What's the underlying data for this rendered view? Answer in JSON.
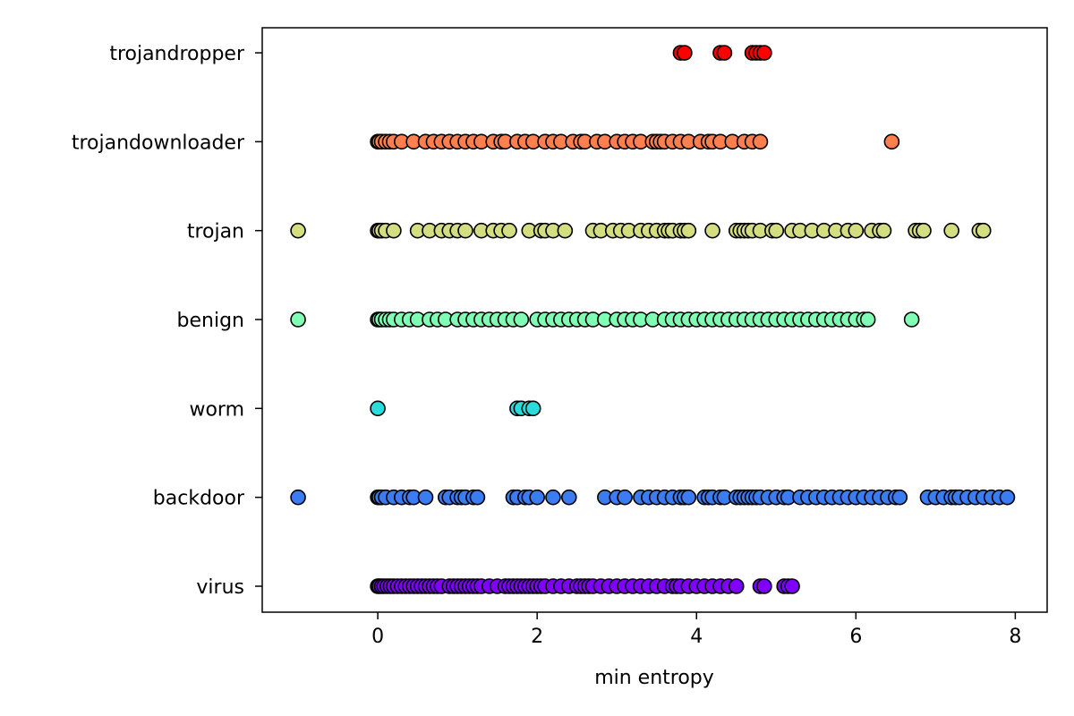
{
  "chart_data": {
    "type": "scatter",
    "title": "",
    "xlabel": "min entropy",
    "ylabel": "",
    "xlim": [
      -1.45,
      8.4
    ],
    "xticks": [
      0,
      2,
      4,
      6,
      8
    ],
    "categories": [
      "virus",
      "backdoor",
      "worm",
      "benign",
      "trojan",
      "trojandownloader",
      "trojandropper"
    ],
    "grid": false,
    "legend": "none",
    "series": [
      {
        "category": "virus",
        "color": "#7f00ff",
        "x": [
          0,
          0.02,
          0.05,
          0.08,
          0.12,
          0.16,
          0.2,
          0.25,
          0.3,
          0.35,
          0.4,
          0.45,
          0.5,
          0.55,
          0.6,
          0.65,
          0.7,
          0.75,
          0.8,
          0.9,
          0.95,
          1.0,
          1.05,
          1.1,
          1.15,
          1.2,
          1.25,
          1.3,
          1.4,
          1.5,
          1.6,
          1.65,
          1.7,
          1.75,
          1.8,
          1.85,
          1.9,
          1.95,
          2.0,
          2.05,
          2.1,
          2.2,
          2.3,
          2.4,
          2.5,
          2.55,
          2.6,
          2.65,
          2.7,
          2.8,
          2.9,
          3.0,
          3.1,
          3.2,
          3.3,
          3.4,
          3.5,
          3.6,
          3.7,
          3.75,
          3.8,
          3.9,
          4.0,
          4.1,
          4.2,
          4.3,
          4.4,
          4.5,
          4.8,
          4.85,
          5.1,
          5.15,
          5.2
        ]
      },
      {
        "category": "backdoor",
        "color": "#3b7cf3",
        "x": [
          -1.0,
          0,
          0.02,
          0.05,
          0.1,
          0.2,
          0.3,
          0.4,
          0.45,
          0.6,
          0.85,
          0.9,
          1.0,
          1.05,
          1.1,
          1.2,
          1.25,
          1.7,
          1.75,
          1.85,
          1.9,
          2.0,
          2.2,
          2.4,
          2.85,
          3.0,
          3.1,
          3.3,
          3.4,
          3.5,
          3.6,
          3.7,
          3.8,
          3.85,
          3.9,
          4.1,
          4.15,
          4.2,
          4.3,
          4.35,
          4.5,
          4.55,
          4.6,
          4.65,
          4.7,
          4.75,
          4.8,
          4.9,
          5.0,
          5.1,
          5.15,
          5.3,
          5.4,
          5.5,
          5.6,
          5.7,
          5.8,
          5.9,
          6.0,
          6.1,
          6.2,
          6.3,
          6.4,
          6.5,
          6.55,
          6.9,
          7.0,
          7.1,
          7.2,
          7.25,
          7.3,
          7.4,
          7.5,
          7.6,
          7.7,
          7.8,
          7.9
        ]
      },
      {
        "category": "worm",
        "color": "#2adddd",
        "x": [
          0,
          1.75,
          1.8,
          1.9,
          1.95
        ]
      },
      {
        "category": "benign",
        "color": "#80ffb4",
        "x": [
          -1.0,
          0,
          0.02,
          0.05,
          0.1,
          0.15,
          0.2,
          0.3,
          0.4,
          0.5,
          0.65,
          0.75,
          0.85,
          1.0,
          1.1,
          1.2,
          1.3,
          1.4,
          1.5,
          1.6,
          1.7,
          1.8,
          2.0,
          2.1,
          2.2,
          2.3,
          2.4,
          2.5,
          2.6,
          2.7,
          2.85,
          3.0,
          3.1,
          3.2,
          3.3,
          3.45,
          3.6,
          3.7,
          3.8,
          3.9,
          4.0,
          4.1,
          4.2,
          4.3,
          4.4,
          4.5,
          4.6,
          4.7,
          4.8,
          4.9,
          5.0,
          5.1,
          5.2,
          5.3,
          5.4,
          5.5,
          5.6,
          5.7,
          5.8,
          5.9,
          6.0,
          6.1,
          6.15,
          6.7
        ]
      },
      {
        "category": "trojan",
        "color": "#d4dd80",
        "x": [
          -1.0,
          0,
          0.02,
          0.05,
          0.1,
          0.2,
          0.5,
          0.65,
          0.8,
          0.9,
          1.0,
          1.1,
          1.3,
          1.45,
          1.55,
          1.65,
          1.9,
          2.05,
          2.1,
          2.2,
          2.35,
          2.7,
          2.8,
          2.95,
          3.05,
          3.15,
          3.3,
          3.4,
          3.5,
          3.6,
          3.65,
          3.7,
          3.8,
          3.85,
          3.9,
          4.2,
          4.5,
          4.55,
          4.6,
          4.65,
          4.7,
          4.8,
          4.95,
          5.0,
          5.2,
          5.3,
          5.45,
          5.6,
          5.75,
          5.9,
          6.0,
          6.2,
          6.3,
          6.35,
          6.75,
          6.8,
          6.85,
          7.2,
          7.55,
          7.6
        ]
      },
      {
        "category": "trojandownloader",
        "color": "#ff7f4f",
        "x": [
          0,
          0.02,
          0.05,
          0.1,
          0.15,
          0.2,
          0.3,
          0.45,
          0.6,
          0.7,
          0.8,
          0.9,
          1.0,
          1.1,
          1.2,
          1.3,
          1.45,
          1.55,
          1.6,
          1.75,
          1.85,
          1.95,
          2.1,
          2.2,
          2.3,
          2.45,
          2.55,
          2.6,
          2.75,
          2.85,
          3.0,
          3.1,
          3.2,
          3.3,
          3.45,
          3.5,
          3.55,
          3.6,
          3.7,
          3.8,
          3.9,
          4.05,
          4.15,
          4.2,
          4.3,
          4.45,
          4.6,
          4.7,
          4.8,
          6.45
        ]
      },
      {
        "category": "trojandropper",
        "color": "#ff0000",
        "x": [
          3.8,
          3.85,
          4.3,
          4.35,
          4.7,
          4.75,
          4.8,
          4.85
        ]
      }
    ]
  }
}
